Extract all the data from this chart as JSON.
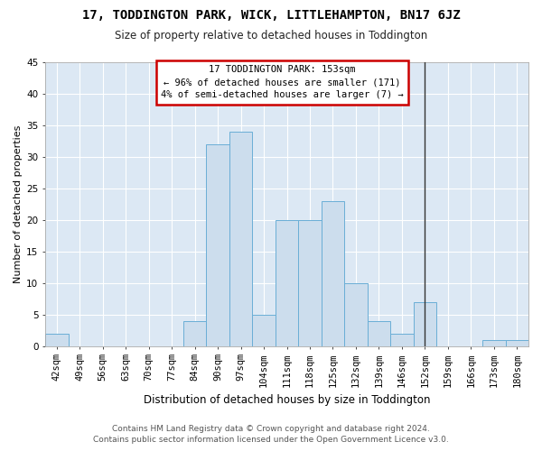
{
  "title": "17, TODDINGTON PARK, WICK, LITTLEHAMPTON, BN17 6JZ",
  "subtitle": "Size of property relative to detached houses in Toddington",
  "xlabel": "Distribution of detached houses by size in Toddington",
  "ylabel": "Number of detached properties",
  "bar_color": "#ccdded",
  "bar_edge_color": "#6aaed6",
  "fig_bg": "#ffffff",
  "ax_bg": "#dce8f4",
  "grid_color": "#ffffff",
  "categories": [
    "42sqm",
    "49sqm",
    "56sqm",
    "63sqm",
    "70sqm",
    "77sqm",
    "84sqm",
    "90sqm",
    "97sqm",
    "104sqm",
    "111sqm",
    "118sqm",
    "125sqm",
    "132sqm",
    "139sqm",
    "146sqm",
    "152sqm",
    "159sqm",
    "166sqm",
    "173sqm",
    "180sqm"
  ],
  "values": [
    2,
    0,
    0,
    0,
    0,
    0,
    4,
    32,
    34,
    5,
    20,
    20,
    23,
    10,
    4,
    2,
    7,
    0,
    0,
    1,
    1
  ],
  "ylim": [
    0,
    45
  ],
  "yticks": [
    0,
    5,
    10,
    15,
    20,
    25,
    30,
    35,
    40,
    45
  ],
  "vline_index": 16,
  "annotation_title": "17 TODDINGTON PARK: 153sqm",
  "annotation_line2": "← 96% of detached houses are smaller (171)",
  "annotation_line3": "4% of semi-detached houses are larger (7) →",
  "annotation_box_edge": "#cc0000",
  "vline_color": "#333333",
  "footer_line1": "Contains HM Land Registry data © Crown copyright and database right 2024.",
  "footer_line2": "Contains public sector information licensed under the Open Government Licence v3.0.",
  "title_fontsize": 10,
  "subtitle_fontsize": 8.5,
  "ylabel_fontsize": 8,
  "xlabel_fontsize": 8.5,
  "tick_fontsize": 7.5,
  "footer_fontsize": 6.5,
  "annot_fontsize": 7.5
}
